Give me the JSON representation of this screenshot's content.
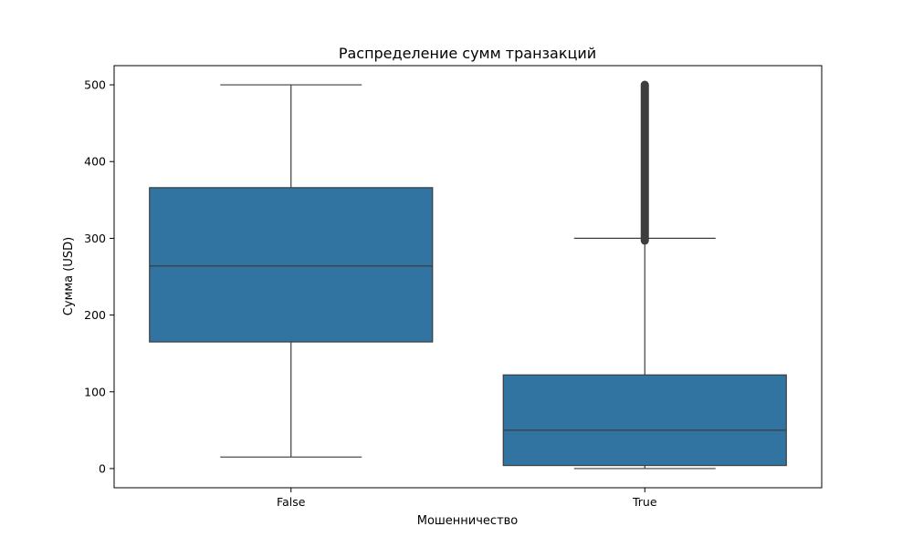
{
  "chart_data": {
    "type": "box",
    "title": "Распределение сумм транзакций",
    "xlabel": "Мошенничество",
    "ylabel": "Сумма (USD)",
    "categories": [
      "False",
      "True"
    ],
    "ylim": [
      -25,
      525
    ],
    "yticks": [
      0,
      100,
      200,
      300,
      400,
      500
    ],
    "box_color": "#3274a1",
    "line_color": "#3d3d3d",
    "boxes": [
      {
        "category": "False",
        "whisker_low": 15,
        "q1": 165,
        "median": 264,
        "q3": 366,
        "whisker_high": 500,
        "outlier_range": null
      },
      {
        "category": "True",
        "whisker_low": 0,
        "q1": 4,
        "median": 50,
        "q3": 122,
        "whisker_high": 300,
        "outlier_range": [
          297,
          500
        ]
      }
    ]
  }
}
